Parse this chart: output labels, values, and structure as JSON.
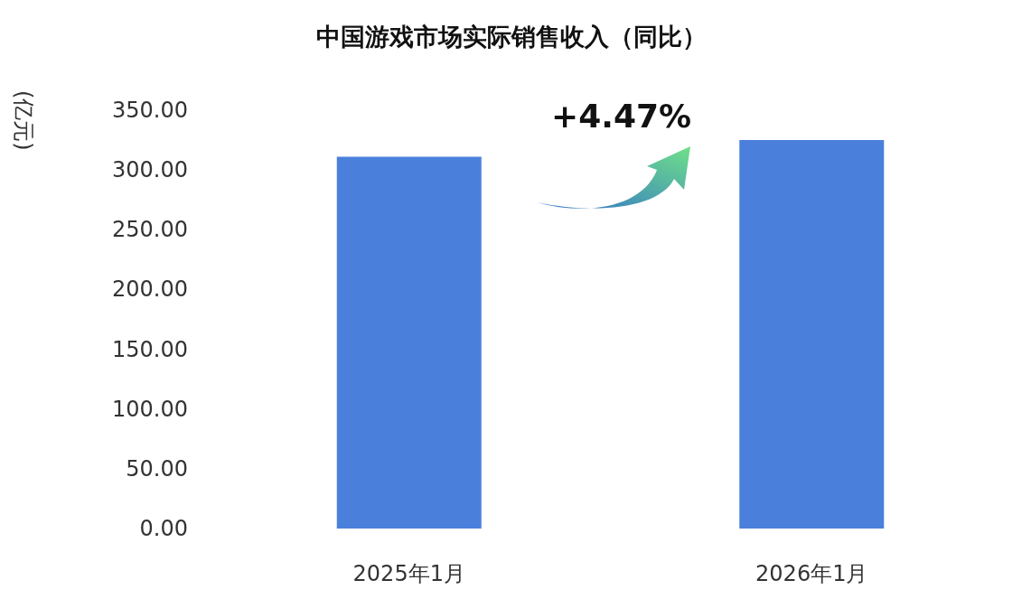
{
  "chart_data": {
    "type": "bar",
    "title": "中国游戏市场实际销售收入（同比）",
    "ylabel": "(亿元)",
    "categories": [
      "2025年1月",
      "2026年1月"
    ],
    "values": [
      311,
      325
    ],
    "color": "#4a80dc",
    "ylim": [
      0,
      350
    ],
    "yticks": [
      {
        "value": 0,
        "label": "0.00"
      },
      {
        "value": 50,
        "label": "50.00"
      },
      {
        "value": 100,
        "label": "100.00"
      },
      {
        "value": 150,
        "label": "150.00"
      },
      {
        "value": 200,
        "label": "200.00"
      },
      {
        "value": 250,
        "label": "250.00"
      },
      {
        "value": 300,
        "label": "300.00"
      },
      {
        "value": 350,
        "label": "350.00"
      }
    ],
    "annotations": [
      "+4.47%"
    ],
    "grid": false
  }
}
